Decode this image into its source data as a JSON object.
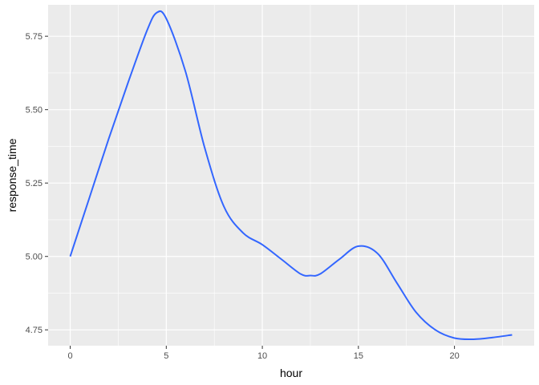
{
  "chart_data": {
    "type": "line",
    "xlabel": "hour",
    "ylabel": "response_time",
    "xlim": [
      -1.15,
      24.15
    ],
    "ylim": [
      4.696,
      5.857
    ],
    "x_ticks": [
      0,
      5,
      10,
      15,
      20
    ],
    "x_tick_labels": [
      "0",
      "5",
      "10",
      "15",
      "20"
    ],
    "y_ticks": [
      4.75,
      5.0,
      5.25,
      5.5,
      5.75
    ],
    "y_tick_labels": [
      "4.75",
      "5.00",
      "5.25",
      "5.50",
      "5.75"
    ],
    "grid": true,
    "background": "#ebebeb",
    "grid_major_color": "#ffffff",
    "line_color": "#3366ff",
    "series": [
      {
        "x": [
          0,
          1,
          2,
          3,
          4,
          4.5,
          5,
          6,
          7,
          8,
          9,
          10,
          11,
          12,
          12.5,
          13,
          14,
          15,
          16,
          17,
          18,
          19,
          20,
          21,
          22,
          23
        ],
        "y": [
          5.0,
          5.2,
          5.4,
          5.59,
          5.77,
          5.83,
          5.81,
          5.63,
          5.37,
          5.17,
          5.08,
          5.04,
          4.99,
          4.94,
          4.935,
          4.94,
          4.99,
          5.035,
          5.01,
          4.91,
          4.81,
          4.75,
          4.722,
          4.718,
          4.724,
          4.733
        ]
      }
    ]
  }
}
